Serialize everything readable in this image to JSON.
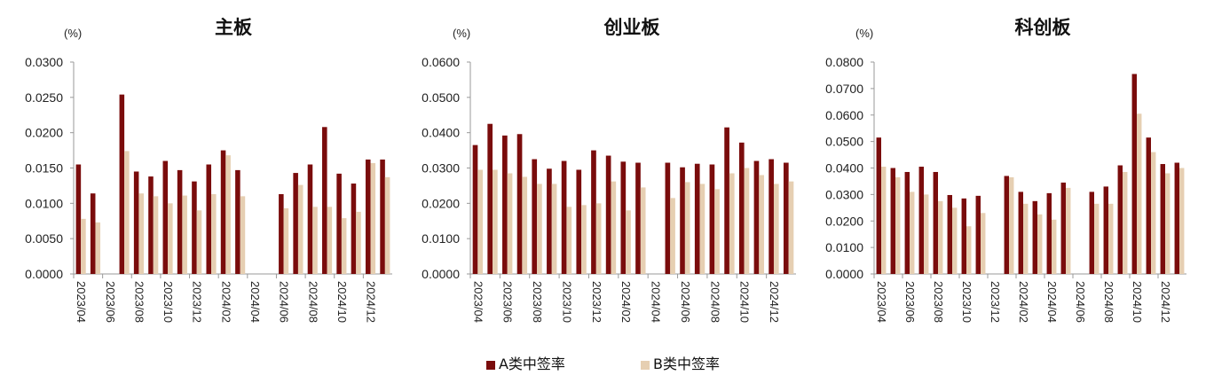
{
  "colors": {
    "a": "#7a0c0c",
    "b": "#e6cfb2",
    "axis": "#999999"
  },
  "legend": {
    "a_label": "A类中签率",
    "b_label": "B类中签率"
  },
  "chart_data": [
    {
      "type": "bar",
      "title": "主板",
      "unit": "(%)",
      "ylim": [
        0,
        0.03
      ],
      "yticks": [
        "0.0000",
        "0.0050",
        "0.0100",
        "0.0150",
        "0.0200",
        "0.0250",
        "0.0300"
      ],
      "categories": [
        "2023/04",
        "2023/05",
        "2023/06",
        "2023/07",
        "2023/08",
        "2023/09",
        "2023/10",
        "2023/11",
        "2023/12",
        "2024/01",
        "2024/02",
        "2024/03",
        "2024/04",
        "2024/05",
        "2024/06",
        "2024/07",
        "2024/08",
        "2024/09",
        "2024/10",
        "2024/11",
        "2024/12",
        "2025/01"
      ],
      "xtick_labels": [
        "2023/04",
        "2023/06",
        "2023/08",
        "2023/10",
        "2023/12",
        "2024/02",
        "2024/04",
        "2024/06",
        "2024/08",
        "2024/10",
        "2024/12"
      ],
      "series": [
        {
          "name": "A类中签率",
          "values": [
            0.0155,
            0.0114,
            0,
            0.0254,
            0.0145,
            0.0138,
            0.016,
            0.0147,
            0.0131,
            0.0155,
            0.0175,
            0.0147,
            0,
            0,
            0.0113,
            0.0143,
            0.0155,
            0.0208,
            0.0142,
            0.0128,
            0.0162,
            0.0162
          ]
        },
        {
          "name": "B类中签率",
          "values": [
            0.0078,
            0.0073,
            0,
            0.0174,
            0.0114,
            0.011,
            0.01,
            0.0111,
            0.009,
            0.0113,
            0.0168,
            0.011,
            0,
            0,
            0.0093,
            0.0126,
            0.0095,
            0.0095,
            0.0079,
            0.0088,
            0.0157,
            0.0137
          ]
        }
      ]
    },
    {
      "type": "bar",
      "title": "创业板",
      "unit": "(%)",
      "ylim": [
        0,
        0.06
      ],
      "yticks": [
        "0.0000",
        "0.0100",
        "0.0200",
        "0.0300",
        "0.0400",
        "0.0500",
        "0.0600"
      ],
      "categories": [
        "2023/04",
        "2023/05",
        "2023/06",
        "2023/07",
        "2023/08",
        "2023/09",
        "2023/10",
        "2023/11",
        "2023/12",
        "2024/01",
        "2024/02",
        "2024/03",
        "2024/04",
        "2024/05",
        "2024/06",
        "2024/07",
        "2024/08",
        "2024/09",
        "2024/10",
        "2024/11",
        "2024/12",
        "2025/01"
      ],
      "xtick_labels": [
        "2023/04",
        "2023/06",
        "2023/08",
        "2023/10",
        "2023/12",
        "2024/02",
        "2024/04",
        "2024/06",
        "2024/08",
        "2024/10",
        "2024/12"
      ],
      "series": [
        {
          "name": "A类中签率",
          "values": [
            0.0365,
            0.0425,
            0.0392,
            0.0396,
            0.0325,
            0.0298,
            0.032,
            0.0295,
            0.035,
            0.0335,
            0.0318,
            0.0315,
            0,
            0.0315,
            0.0302,
            0.0312,
            0.031,
            0.0415,
            0.0372,
            0.032,
            0.0325,
            0.0315
          ]
        },
        {
          "name": "B类中签率",
          "values": [
            0.0295,
            0.0295,
            0.0285,
            0.0275,
            0.0255,
            0.0255,
            0.019,
            0.0195,
            0.02,
            0.0262,
            0.018,
            0.0245,
            0,
            0.0215,
            0.026,
            0.0255,
            0.024,
            0.0285,
            0.03,
            0.028,
            0.0255,
            0.0262
          ]
        }
      ]
    },
    {
      "type": "bar",
      "title": "科创板",
      "unit": "(%)",
      "ylim": [
        0,
        0.08
      ],
      "yticks": [
        "0.0000",
        "0.0100",
        "0.0200",
        "0.0300",
        "0.0400",
        "0.0500",
        "0.0600",
        "0.0700",
        "0.0800"
      ],
      "categories": [
        "2023/04",
        "2023/05",
        "2023/06",
        "2023/07",
        "2023/08",
        "2023/09",
        "2023/10",
        "2023/11",
        "2023/12",
        "2024/01",
        "2024/02",
        "2024/03",
        "2024/04",
        "2024/05",
        "2024/06",
        "2024/07",
        "2024/08",
        "2024/09",
        "2024/10",
        "2024/11",
        "2024/12",
        "2025/01"
      ],
      "xtick_labels": [
        "2023/04",
        "2023/06",
        "2023/08",
        "2023/10",
        "2023/12",
        "2024/02",
        "2024/04",
        "2024/06",
        "2024/08",
        "2024/10",
        "2024/12"
      ],
      "series": [
        {
          "name": "A类中签率",
          "values": [
            0.0515,
            0.04,
            0.0385,
            0.0405,
            0.0385,
            0.0298,
            0.0285,
            0.0295,
            0,
            0.037,
            0.031,
            0.0275,
            0.0305,
            0.0345,
            0,
            0.031,
            0.033,
            0.041,
            0.0755,
            0.0515,
            0.0415,
            0.042
          ]
        },
        {
          "name": "B类中签率",
          "values": [
            0.0405,
            0.0365,
            0.031,
            0.03,
            0.0275,
            0.025,
            0.018,
            0.023,
            0,
            0.0365,
            0.0265,
            0.0225,
            0.0205,
            0.0325,
            0,
            0.0265,
            0.0265,
            0.0385,
            0.0605,
            0.046,
            0.038,
            0.04
          ]
        }
      ]
    }
  ]
}
